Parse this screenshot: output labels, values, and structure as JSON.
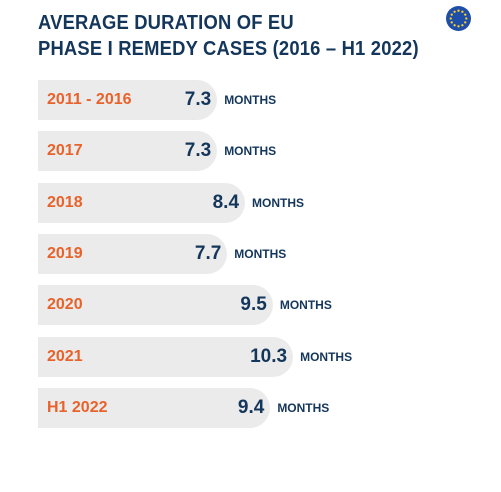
{
  "title_lines": [
    "AVERAGE DURATION OF EU",
    "PHASE I REMEDY CASES (2016 – H1 2022)"
  ],
  "chart_data": {
    "type": "bar",
    "orientation": "horizontal",
    "categories": [
      "2011 - 2016",
      "2017",
      "2018",
      "2019",
      "2020",
      "2021",
      "H1 2022"
    ],
    "values": [
      7.3,
      7.3,
      8.4,
      7.7,
      9.5,
      10.3,
      9.4
    ],
    "value_labels": [
      "7.3",
      "7.3",
      "8.4",
      "7.7",
      "9.5",
      "10.3",
      "9.4"
    ],
    "unit": "MONTHS",
    "title": "AVERAGE DURATION OF EU PHASE I REMEDY CASES (2016 – H1 2022)",
    "colors": {
      "bar": "#ebebeb",
      "category": "#e8622a",
      "value": "#14365a",
      "title": "#14365a",
      "flag": "#1f4ea8",
      "stars": "#ffd21f"
    }
  },
  "icons": {
    "flag": "eu-flag-icon"
  }
}
